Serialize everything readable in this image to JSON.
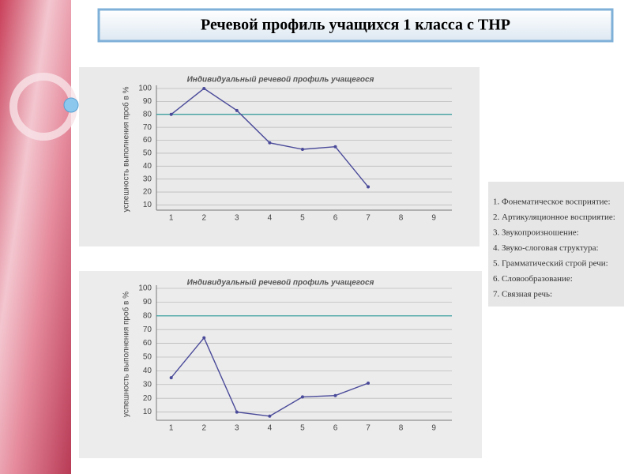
{
  "title": "Речевой профиль учащихся 1 класса с ТНР",
  "legend_list": [
    "1. Фонематическое восприятие:",
    "2. Артикуляционное восприятие:",
    "3. Звукопроизношение:",
    "4. Звуко-слоговая структура:",
    "5. Грамматический строй речи:",
    "6. Словообразование:",
    "7. Связная речь:"
  ],
  "chart_data": [
    {
      "type": "line",
      "title": "Индивидуальный речевой профиль учащегося",
      "y_label": "успешность выполнения проб в %",
      "x": [
        1,
        2,
        3,
        4,
        5,
        6,
        7,
        8,
        9
      ],
      "values": [
        80,
        100,
        83,
        58,
        53,
        55,
        24,
        null,
        null
      ],
      "color": "#4a4a9a",
      "xlim": [
        0.55,
        9.55
      ],
      "xticks": [
        1,
        2,
        3,
        4,
        5,
        6,
        7,
        8,
        9
      ],
      "ylim": [
        6,
        100
      ],
      "yticks": [
        10,
        20,
        30,
        40,
        50,
        60,
        70,
        80,
        90,
        100
      ],
      "grid": true,
      "reference_line": {
        "value": 80,
        "color": "#2f9a9a"
      }
    },
    {
      "type": "line",
      "title": "Индивидуальный речевой профиль учащегося",
      "y_label": "успешность выполнения проб в %",
      "x": [
        1,
        2,
        3,
        4,
        5,
        6,
        7,
        8,
        9
      ],
      "values": [
        35,
        64,
        10,
        7,
        21,
        22,
        31,
        null,
        null
      ],
      "color": "#4a4a9a",
      "xlim": [
        0.55,
        9.55
      ],
      "xticks": [
        1,
        2,
        3,
        4,
        5,
        6,
        7,
        8,
        9
      ],
      "ylim": [
        4,
        100
      ],
      "yticks": [
        10,
        20,
        30,
        40,
        50,
        60,
        70,
        80,
        90,
        100
      ],
      "grid": true,
      "reference_line": {
        "value": 80,
        "color": "#2f9a9a"
      }
    }
  ]
}
